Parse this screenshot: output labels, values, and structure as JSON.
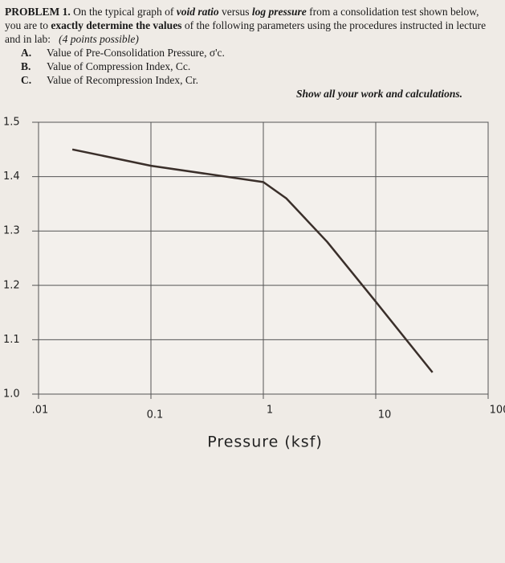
{
  "problem": {
    "label": "PROBLEM 1.",
    "intro": [
      "On the typical graph of ",
      "void ratio",
      " versus ",
      "log pressure",
      " from a consolidation test shown below, you are to ",
      "exactly determine the values",
      " of the following parameters using the procedures instructed in lecture and in lab:",
      "(4 points possible)"
    ],
    "items": [
      {
        "letter": "A.",
        "text": "Value of Pre-Consolidation Pressure, σ'c."
      },
      {
        "letter": "B.",
        "text": "Value of Compression Index, Cc."
      },
      {
        "letter": "C.",
        "text": "Value of Recompression Index, Cr."
      }
    ],
    "note": "Show all your work and calculations."
  },
  "chart_data": {
    "type": "line",
    "x_label": "Pressure (ksf)",
    "x_scale": "log",
    "xlim": [
      0.01,
      100
    ],
    "xticks": [
      {
        "value": 0.01,
        "label": ".01"
      },
      0.1,
      1,
      10,
      100
    ],
    "ylim": [
      1.0,
      1.5
    ],
    "yticks": [
      1.5,
      1.4,
      1.3,
      1.2,
      1.1,
      {
        "value": 1.0,
        "label": "1.0"
      }
    ],
    "grid": true,
    "x": [
      0.02,
      0.1,
      1,
      1.6,
      3.7,
      10,
      32
    ],
    "series": [
      {
        "color": "#3a2f2a",
        "values": [
          1.45,
          1.42,
          1.39,
          1.36,
          1.28,
          1.17,
          1.04
        ]
      }
    ]
  }
}
